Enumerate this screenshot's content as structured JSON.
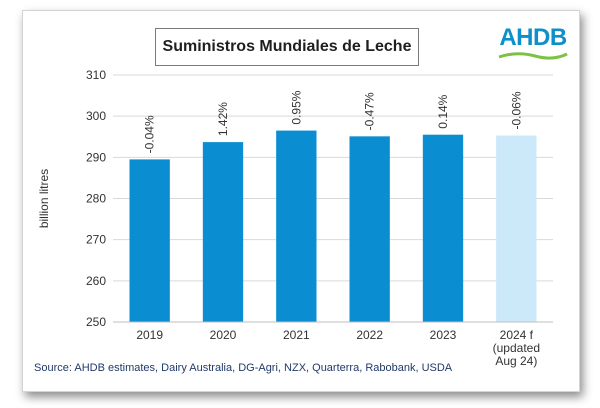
{
  "chart_data": {
    "type": "bar",
    "title": "Suministros Mundiales de Leche",
    "ylabel": "billion litres",
    "xlabel": "",
    "ylim": [
      250,
      310
    ],
    "yticks": [
      250,
      260,
      270,
      280,
      290,
      300,
      310
    ],
    "categories": [
      "2019",
      "2020",
      "2021",
      "2022",
      "2023",
      "2024 f\n(updated\nAug 24)"
    ],
    "values": [
      289.5,
      293.7,
      296.5,
      295.1,
      295.5,
      295.3
    ],
    "data_labels": [
      "-0.04%",
      "1.42%",
      "0.95%",
      "-0.47%",
      "0.14%",
      "-0.06%"
    ],
    "bar_colors": [
      "#0b8ed1",
      "#0b8ed1",
      "#0b8ed1",
      "#0b8ed1",
      "#0b8ed1",
      "#cce9f9"
    ],
    "grid": true
  },
  "logo": {
    "text": "AHDB"
  },
  "source": "Source: AHDB estimates, Dairy Australia, DG-Agri, NZX, Quarterra, Rabobank, USDA"
}
